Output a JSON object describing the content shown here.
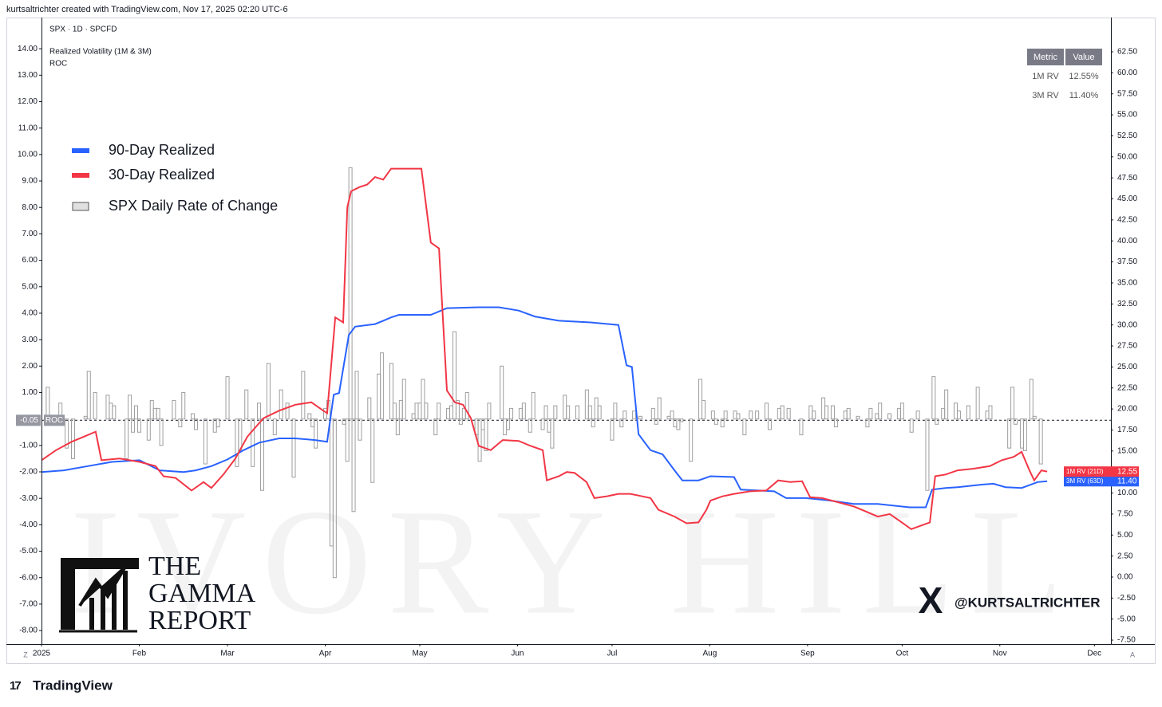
{
  "header": {
    "credit": "kurtsaltrichter created with TradingView.com, Nov 17, 2025 02:20 UTC-6",
    "symbol": "SPX · 1D · SPCFD",
    "indicator": "Realized Volatility (1M & 3M)",
    "pane": "ROC"
  },
  "chart_data": {
    "type": "line",
    "xlim": [
      0,
      339.24
    ],
    "xticks": [
      {
        "value": 0,
        "label": "2025"
      },
      {
        "value": 31,
        "label": "Feb"
      },
      {
        "value": 59,
        "label": "Mar"
      },
      {
        "value": 90,
        "label": "Apr"
      },
      {
        "value": 120,
        "label": "May"
      },
      {
        "value": 151,
        "label": "Jun"
      },
      {
        "value": 181,
        "label": "Jul"
      },
      {
        "value": 212,
        "label": "Aug"
      },
      {
        "value": 243,
        "label": "Sep"
      },
      {
        "value": 273,
        "label": "Oct"
      },
      {
        "value": 304,
        "label": "Nov"
      },
      {
        "value": 334,
        "label": "Dec"
      }
    ],
    "ylim": [
      -8.51,
      15.18
    ],
    "yticks": [
      {
        "value": 14,
        "label": "14.00"
      },
      {
        "value": 13,
        "label": "13.00"
      },
      {
        "value": 12,
        "label": "12.00"
      },
      {
        "value": 11,
        "label": "11.00"
      },
      {
        "value": 10,
        "label": "10.00"
      },
      {
        "value": 9,
        "label": "9.00"
      },
      {
        "value": 8,
        "label": "8.00"
      },
      {
        "value": 7,
        "label": "7.00"
      },
      {
        "value": 6,
        "label": "6.00"
      },
      {
        "value": 5,
        "label": "5.00"
      },
      {
        "value": 4,
        "label": "4.00"
      },
      {
        "value": 3,
        "label": "3.00"
      },
      {
        "value": 2,
        "label": "2.00"
      },
      {
        "value": 1,
        "label": "1.00"
      },
      {
        "value": -1,
        "label": "-1.00"
      },
      {
        "value": -2,
        "label": "-2.00"
      },
      {
        "value": -3,
        "label": "-3.00"
      },
      {
        "value": -4,
        "label": "-4.00"
      },
      {
        "value": -5,
        "label": "-5.00"
      },
      {
        "value": -6,
        "label": "-6.00"
      },
      {
        "value": -7,
        "label": "-7.00"
      },
      {
        "value": -8,
        "label": "-8.00"
      }
    ],
    "y2lim": [
      -7.97,
      66.58
    ],
    "y2ticks": [
      {
        "value": 62.5,
        "label": "62.50"
      },
      {
        "value": 60,
        "label": "60.00"
      },
      {
        "value": 57.5,
        "label": "57.50"
      },
      {
        "value": 55,
        "label": "55.00"
      },
      {
        "value": 52.5,
        "label": "52.50"
      },
      {
        "value": 50,
        "label": "50.00"
      },
      {
        "value": 47.5,
        "label": "47.50"
      },
      {
        "value": 45,
        "label": "45.00"
      },
      {
        "value": 42.5,
        "label": "42.50"
      },
      {
        "value": 40,
        "label": "40.00"
      },
      {
        "value": 37.5,
        "label": "37.50"
      },
      {
        "value": 35,
        "label": "35.00"
      },
      {
        "value": 32.5,
        "label": "32.50"
      },
      {
        "value": 30,
        "label": "30.00"
      },
      {
        "value": 27.5,
        "label": "27.50"
      },
      {
        "value": 25,
        "label": "25.00"
      },
      {
        "value": 22.5,
        "label": "22.50"
      },
      {
        "value": 20,
        "label": "20.00"
      },
      {
        "value": 17.5,
        "label": "17.50"
      },
      {
        "value": 15,
        "label": "15.00"
      },
      {
        "value": 12.5,
        "label": "12.50"
      },
      {
        "value": 10,
        "label": "10.00"
      },
      {
        "value": 7.5,
        "label": "7.50"
      },
      {
        "value": 5,
        "label": "5.00"
      },
      {
        "value": 2.5,
        "label": "2.50"
      },
      {
        "value": 0,
        "label": "0.00"
      },
      {
        "value": -2.5,
        "label": "-2.50"
      },
      {
        "value": -5,
        "label": "-5.00"
      },
      {
        "value": -7.5,
        "label": "-7.50"
      }
    ],
    "legend_position": "upper left",
    "reference_line": {
      "value": -0.05,
      "label": "-0.05",
      "name": "ROC"
    },
    "series": [
      {
        "name": "90-Day Realized",
        "color": "#2962ff",
        "type": "line",
        "axis": "y2",
        "badge": "3M RV (63D)",
        "badge_value": "11.40",
        "x": [
          0,
          7.1,
          14.7,
          22.3,
          31.1,
          37.5,
          45.1,
          48.9,
          53.9,
          59.0,
          64.1,
          69.1,
          75.4,
          80.5,
          86.8,
          90.6,
          92.7,
          94.4,
          97.5,
          99.5,
          105.8,
          108.4,
          110.9,
          113.4,
          123.5,
          128.6,
          138.7,
          145.1,
          151.4,
          156.5,
          164.1,
          174.2,
          183.0,
          185.6,
          187.3,
          189.4,
          193.2,
          197.0,
          200.8,
          203.3,
          208.4,
          212.2,
          219.7,
          221.8,
          227.3,
          232.4,
          236.2,
          242.5,
          250.1,
          257.7,
          265.3,
          275.4,
          280.5,
          282.5,
          286.8,
          290.6,
          298.2,
          302.0,
          305.8,
          310.9,
          316.0,
          319.0
        ],
        "values": [
          12.5,
          12.7,
          13.2,
          13.7,
          13.9,
          12.7,
          12.5,
          12.7,
          13.2,
          14.0,
          15.1,
          16.0,
          16.5,
          16.5,
          16.3,
          16.1,
          21.7,
          21.9,
          28.8,
          29.8,
          30.1,
          30.5,
          30.9,
          31.2,
          31.2,
          32.0,
          32.1,
          32.1,
          31.7,
          31.0,
          30.5,
          30.3,
          30.0,
          25.2,
          25.0,
          17.0,
          15.1,
          14.6,
          12.7,
          11.5,
          11.5,
          12.0,
          11.9,
          10.4,
          10.3,
          10.2,
          9.4,
          9.4,
          9.1,
          8.7,
          8.7,
          8.3,
          8.3,
          10.4,
          10.6,
          10.7,
          11.0,
          11.1,
          10.7,
          10.6,
          11.3,
          11.4
        ]
      },
      {
        "name": "30-Day Realized",
        "color": "#f23645",
        "type": "line",
        "axis": "y2",
        "badge": "1M RV (21D)",
        "badge_value": "12.55",
        "x": [
          0,
          4.6,
          9.6,
          13.4,
          17.2,
          19.0,
          24.8,
          31.1,
          36.2,
          38.7,
          42.5,
          47.6,
          51.4,
          53.9,
          57.7,
          61.5,
          65.3,
          70.4,
          75.4,
          80.5,
          85.6,
          89.4,
          90.6,
          93.2,
          95.7,
          97.0,
          98.2,
          100.8,
          103.3,
          105.8,
          108.4,
          110.9,
          115.9,
          120.5,
          123.5,
          126.1,
          128.6,
          131.1,
          133.7,
          136.2,
          138.7,
          142.5,
          146.3,
          151.4,
          155.2,
          159.0,
          160.3,
          164.1,
          166.6,
          169.1,
          172.9,
          175.4,
          179.2,
          183.0,
          186.8,
          189.4,
          193.2,
          195.7,
          200.8,
          204.6,
          208.4,
          210.9,
          212.2,
          215.9,
          219.7,
          224.8,
          229.9,
          233.7,
          237.5,
          241.3,
          243.8,
          247.6,
          252.7,
          257.7,
          261.5,
          265.3,
          269.1,
          272.9,
          275.9,
          281.8,
          283.5,
          286.8,
          290.6,
          295.7,
          300.8,
          304.6,
          308.4,
          310.9,
          313.4,
          314.9,
          317.2,
          319.0
        ],
        "values": [
          13.9,
          15.1,
          16.1,
          16.7,
          17.3,
          13.9,
          14.1,
          13.7,
          13.2,
          12.0,
          11.8,
          10.3,
          11.3,
          10.6,
          12.2,
          14.1,
          16.7,
          18.9,
          19.8,
          20.5,
          20.8,
          19.8,
          19.5,
          30.9,
          30.3,
          44.0,
          45.9,
          46.4,
          46.7,
          47.6,
          47.3,
          48.6,
          48.6,
          48.6,
          39.8,
          39.1,
          22.2,
          20.8,
          20.5,
          18.9,
          15.6,
          15.1,
          16.3,
          16.2,
          15.6,
          15.1,
          11.5,
          12.0,
          12.5,
          12.4,
          11.3,
          9.4,
          9.6,
          9.9,
          9.9,
          9.7,
          9.4,
          8.0,
          7.2,
          6.4,
          6.5,
          8.0,
          9.1,
          9.6,
          9.9,
          10.2,
          10.3,
          11.5,
          11.3,
          11.4,
          9.5,
          9.4,
          8.9,
          8.4,
          7.8,
          7.2,
          7.5,
          6.5,
          5.7,
          6.5,
          12.0,
          12.2,
          12.7,
          12.9,
          13.2,
          13.9,
          14.3,
          14.9,
          12.7,
          11.5,
          12.7,
          12.55
        ]
      },
      {
        "name": "SPX Daily Rate of Change",
        "color": "#9e9e9e",
        "type": "bar",
        "axis": "y",
        "x": [
          2,
          6,
          8,
          10,
          14,
          15,
          17,
          21,
          22,
          23,
          27,
          28,
          29,
          30,
          31,
          34,
          35,
          36,
          37,
          38,
          42,
          44,
          45,
          48,
          49,
          52,
          55,
          56,
          59,
          62,
          63,
          65,
          67,
          69,
          70,
          72,
          74,
          76,
          78,
          80,
          83,
          85,
          86,
          87,
          90,
          91,
          92,
          93,
          96,
          97,
          98,
          99,
          100,
          101,
          104,
          105,
          107,
          108,
          111,
          112,
          113,
          114,
          115,
          118,
          119,
          120,
          121,
          122,
          125,
          126,
          129,
          130,
          131,
          132,
          133,
          134,
          135,
          138,
          139,
          140,
          141,
          142,
          146,
          147,
          148,
          149,
          152,
          153,
          155,
          156,
          159,
          160,
          161,
          162,
          163,
          166,
          167,
          170,
          173,
          174,
          175,
          176,
          177,
          181,
          182,
          184,
          185,
          188,
          190,
          194,
          195,
          196,
          199,
          200,
          201,
          202,
          203,
          206,
          209,
          210,
          213,
          214,
          216,
          217,
          220,
          221,
          223,
          225,
          227,
          230,
          231,
          234,
          235,
          237,
          241,
          244,
          245,
          248,
          249,
          251,
          252,
          255,
          256,
          259,
          262,
          263,
          265,
          266,
          269,
          272,
          273,
          276,
          278,
          281,
          283,
          284,
          286,
          287,
          290,
          291,
          294,
          297,
          300,
          301,
          307,
          308,
          309,
          311,
          312,
          314,
          315,
          317
        ],
        "values": [
          1.2,
          0.6,
          -1.1,
          -1.5,
          0.1,
          1.8,
          1.0,
          0.9,
          0.6,
          0.5,
          -1.5,
          0.9,
          -0.5,
          0.5,
          -0.5,
          -0.8,
          0.7,
          0.4,
          0.4,
          -1.0,
          0.7,
          -0.3,
          1.0,
          0.2,
          -0.4,
          -1.7,
          -0.5,
          -0.3,
          1.6,
          -1.8,
          -1.2,
          1.1,
          -1.8,
          0.6,
          -2.7,
          2.1,
          -0.6,
          1.1,
          0.6,
          -2.2,
          1.8,
          0.2,
          -0.3,
          -1.1,
          0.4,
          0.7,
          -4.8,
          -6.0,
          -0.2,
          -1.6,
          9.5,
          -3.5,
          1.8,
          -0.8,
          0.8,
          -2.4,
          1.7,
          2.5,
          2.1,
          0.6,
          -0.6,
          0.7,
          1.5,
          0.2,
          0.6,
          0.6,
          1.5,
          0.6,
          -0.6,
          0.6,
          0.4,
          0.5,
          3.3,
          0.7,
          -0.2,
          0.4,
          1.0,
          -0.6,
          -1.6,
          -0.4,
          -1.2,
          0.6,
          2.0,
          -0.6,
          -0.4,
          0.4,
          0.4,
          0.6,
          -0.5,
          1.0,
          -0.4,
          0.5,
          -0.5,
          -1.1,
          0.5,
          0.9,
          0.5,
          0.5,
          1.1,
          0.5,
          -0.3,
          0.8,
          0.5,
          -0.8,
          0.6,
          -0.3,
          0.3,
          0.3,
          0.1,
          0.4,
          -0.2,
          0.8,
          0.1,
          0.3,
          -0.3,
          -0.4,
          -0.1,
          -1.6,
          1.5,
          0.7,
          0.3,
          -0.2,
          -0.3,
          0.3,
          0.3,
          0.2,
          -0.6,
          0.3,
          0.3,
          0.6,
          -0.4,
          0.4,
          0.5,
          0.4,
          -0.6,
          0.5,
          0.3,
          0.8,
          0.5,
          0.5,
          -0.3,
          0.3,
          0.4,
          0.1,
          -0.3,
          0.4,
          0.2,
          0.6,
          0.2,
          0.4,
          0.6,
          -0.5,
          0.3,
          -2.7,
          1.6,
          -0.2,
          0.4,
          1.1,
          0.6,
          0.3,
          0.5,
          1.2,
          0.3,
          0.5,
          -1.1,
          1.2,
          -0.2,
          -1.1,
          -1.2,
          1.5,
          0.1,
          -1.7
        ]
      }
    ]
  },
  "table": {
    "header": [
      "Metric",
      "Value"
    ],
    "rows": [
      [
        "1M RV",
        "12.55%"
      ],
      [
        "3M RV",
        "11.40%"
      ]
    ]
  },
  "branding": {
    "watermark": "IVORY HILL",
    "logo_lines": [
      "THE",
      "GAMMA",
      "REPORT"
    ],
    "x_handle": "@KURTSALTRICHTER",
    "x_logo": "X",
    "footer": "TradingView",
    "footer_mark": "17",
    "left_button": "Z",
    "right_button": "A"
  }
}
